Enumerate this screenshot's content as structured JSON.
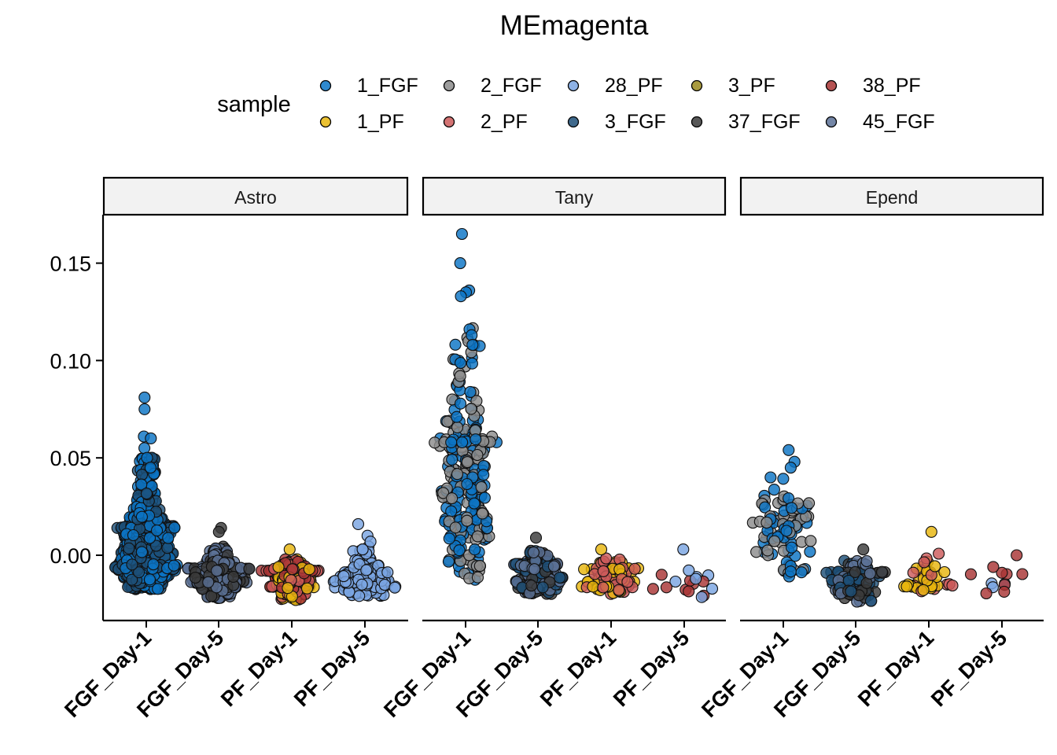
{
  "chart_data": {
    "type": "scatter",
    "subtype": "beeswarm",
    "title": "MEmagenta",
    "legend": {
      "title": "sample",
      "placement": "top",
      "entries": [
        {
          "name": "1_FGF",
          "color": "#0b74c5"
        },
        {
          "name": "1_PF",
          "color": "#e8b60e"
        },
        {
          "name": "2_FGF",
          "color": "#8c8c8c"
        },
        {
          "name": "2_PF",
          "color": "#cc5a5a"
        },
        {
          "name": "28_PF",
          "color": "#7aa5e2"
        },
        {
          "name": "3_FGF",
          "color": "#1d4f78"
        },
        {
          "name": "3_PF",
          "color": "#9a8a1f"
        },
        {
          "name": "37_FGF",
          "color": "#3b3b3b"
        },
        {
          "name": "38_PF",
          "color": "#a83434"
        },
        {
          "name": "45_FGF",
          "color": "#5c7196"
        }
      ]
    },
    "categories": [
      "FGF_Day-1",
      "FGF_Day-5",
      "PF_Day-1",
      "PF_Day-5"
    ],
    "ylim": [
      -0.033,
      0.174
    ],
    "yticks": [
      0.15,
      0.1,
      0.05,
      0.0
    ],
    "ytick_labels": [
      "0.15",
      "0.10",
      "0.05",
      "0.00"
    ],
    "grid": false,
    "panels": [
      {
        "label": "Astro",
        "groups": [
          {
            "category": "FGF_Day-1",
            "samples": [
              "1_FGF",
              "3_FGF"
            ],
            "n": 1100,
            "min": -0.018,
            "q1": -0.006,
            "median": 0.002,
            "q3": 0.014,
            "max": 0.081,
            "highlights": [
              0.081,
              0.075,
              0.061,
              0.06,
              0.055,
              0.05,
              0.045
            ]
          },
          {
            "category": "FGF_Day-5",
            "samples": [
              "37_FGF",
              "45_FGF"
            ],
            "n": 500,
            "min": -0.022,
            "q1": -0.014,
            "median": -0.011,
            "q3": -0.007,
            "max": 0.014,
            "highlights": [
              0.014,
              0.012
            ]
          },
          {
            "category": "PF_Day-1",
            "samples": [
              "1_PF",
              "2_PF",
              "38_PF"
            ],
            "n": 350,
            "min": -0.023,
            "q1": -0.016,
            "median": -0.012,
            "q3": -0.008,
            "max": 0.003,
            "highlights": [
              0.003
            ]
          },
          {
            "category": "PF_Day-5",
            "samples": [
              "28_PF"
            ],
            "n": 200,
            "min": -0.021,
            "q1": -0.016,
            "median": -0.013,
            "q3": -0.009,
            "max": 0.016,
            "highlights": [
              0.016,
              0.01,
              0.007
            ]
          }
        ]
      },
      {
        "label": "Tany",
        "groups": [
          {
            "category": "FGF_Day-1",
            "samples": [
              "1_FGF",
              "2_FGF"
            ],
            "n": 260,
            "min": -0.013,
            "q1": 0.018,
            "median": 0.04,
            "q3": 0.058,
            "max": 0.165,
            "highlights": [
              0.165,
              0.15,
              0.136,
              0.135,
              0.133,
              0.116,
              0.113,
              0.108
            ]
          },
          {
            "category": "FGF_Day-5",
            "samples": [
              "37_FGF",
              "3_FGF",
              "45_FGF"
            ],
            "n": 180,
            "min": -0.02,
            "q1": -0.015,
            "median": -0.011,
            "q3": -0.005,
            "max": 0.009,
            "highlights": [
              0.009
            ]
          },
          {
            "category": "PF_Day-1",
            "samples": [
              "1_PF",
              "2_PF"
            ],
            "n": 90,
            "min": -0.02,
            "q1": -0.016,
            "median": -0.012,
            "q3": -0.007,
            "max": 0.003,
            "highlights": [
              0.003
            ]
          },
          {
            "category": "PF_Day-5",
            "samples": [
              "28_PF",
              "38_PF"
            ],
            "n": 16,
            "min": -0.022,
            "q1": -0.017,
            "median": -0.014,
            "q3": -0.011,
            "max": 0.003,
            "highlights": [
              0.003
            ]
          }
        ]
      },
      {
        "label": "Epend",
        "groups": [
          {
            "category": "FGF_Day-1",
            "samples": [
              "1_FGF",
              "2_FGF"
            ],
            "n": 85,
            "min": -0.012,
            "q1": 0.004,
            "median": 0.013,
            "q3": 0.024,
            "max": 0.054,
            "highlights": [
              0.054,
              0.048,
              0.045,
              0.04
            ]
          },
          {
            "category": "FGF_Day-5",
            "samples": [
              "37_FGF",
              "45_FGF",
              "3_FGF"
            ],
            "n": 110,
            "min": -0.024,
            "q1": -0.018,
            "median": -0.013,
            "q3": -0.009,
            "max": 0.003,
            "highlights": [
              0.003
            ]
          },
          {
            "category": "PF_Day-1",
            "samples": [
              "1_PF",
              "2_PF"
            ],
            "n": 40,
            "min": -0.02,
            "q1": -0.016,
            "median": -0.013,
            "q3": -0.009,
            "max": 0.012,
            "highlights": [
              0.012
            ]
          },
          {
            "category": "PF_Day-5",
            "samples": [
              "38_PF",
              "28_PF"
            ],
            "n": 10,
            "min": -0.02,
            "q1": -0.018,
            "median": -0.015,
            "q3": -0.011,
            "max": 0.0,
            "highlights": [
              0.0,
              -0.006
            ]
          }
        ]
      }
    ]
  }
}
